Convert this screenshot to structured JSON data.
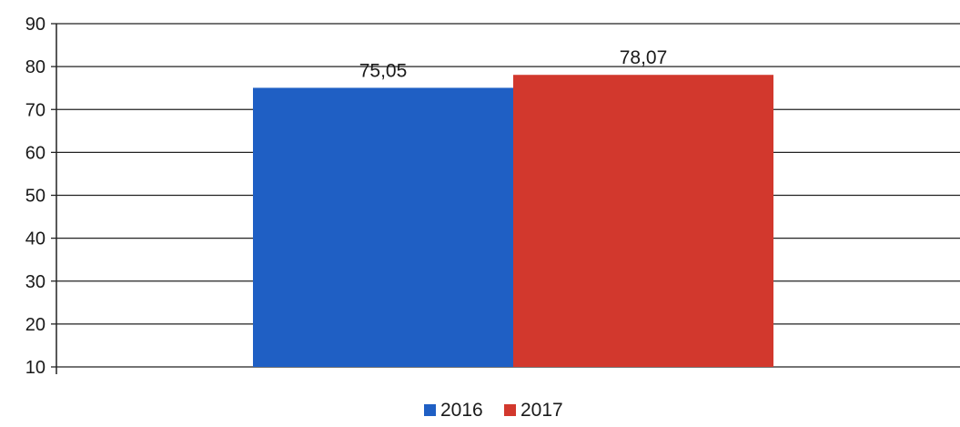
{
  "chart_data": {
    "type": "bar",
    "title": "",
    "xlabel": "",
    "ylabel": "",
    "ylim": [
      10,
      90
    ],
    "yticks": [
      10,
      20,
      30,
      40,
      50,
      60,
      70,
      80,
      90
    ],
    "grid": "horizontal",
    "legend_position": "bottom",
    "series": [
      {
        "name": "2016",
        "value": 75.05,
        "label": "75,05",
        "color": "#1f5fc4"
      },
      {
        "name": "2017",
        "value": 78.07,
        "label": "78,07",
        "color": "#d2382d"
      }
    ]
  }
}
